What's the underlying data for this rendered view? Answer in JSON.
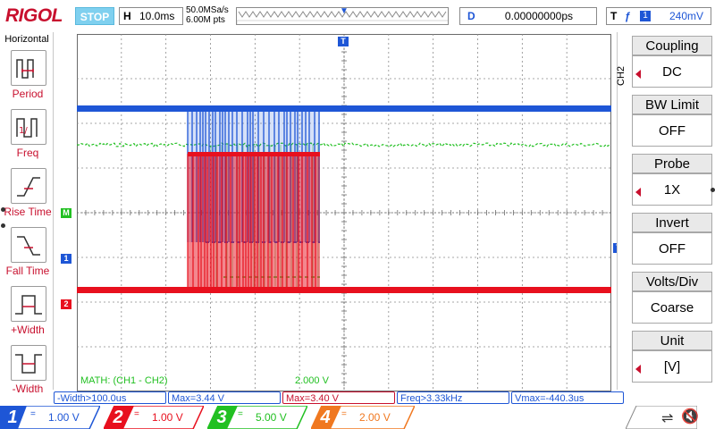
{
  "brand": "RIGOL",
  "run_status": "STOP",
  "timebase": {
    "key": "H",
    "value": "10.0ms"
  },
  "sample": {
    "rate": "50.0MSa/s",
    "points": "6.00M pts"
  },
  "delay": {
    "key": "D",
    "value": "0.00000000ps"
  },
  "trigger": {
    "key": "T",
    "edge": "rising-edge-icon",
    "source": "1",
    "level": "240mV"
  },
  "left_menu": {
    "title": "Horizontal",
    "items": [
      {
        "label": "Period",
        "icon": "period-icon"
      },
      {
        "label": "Freq",
        "icon": "frequency-icon"
      },
      {
        "label": "Rise Time",
        "icon": "rise-time-icon"
      },
      {
        "label": "Fall Time",
        "icon": "fall-time-icon"
      },
      {
        "label": "+Width",
        "icon": "positive-width-icon"
      },
      {
        "label": "-Width",
        "icon": "negative-width-icon"
      }
    ]
  },
  "right_menu": {
    "channel_tag": "CH2",
    "items": [
      {
        "label": "Coupling",
        "value": "DC"
      },
      {
        "label": "BW Limit",
        "value": "OFF"
      },
      {
        "label": "Probe",
        "value": "1X"
      },
      {
        "label": "Invert",
        "value": "OFF"
      },
      {
        "label": "Volts/Div",
        "value": "Coarse"
      },
      {
        "label": "Unit",
        "value": "[V]"
      }
    ]
  },
  "channel_markers": {
    "math": "M",
    "ch1": "1",
    "ch2": "2",
    "trigger_level": "T",
    "trigger_top": "T"
  },
  "math": {
    "label": "MATH: (CH1 - CH2)",
    "scale": "2.000 V"
  },
  "measurements": [
    {
      "text": "-Width>100.0us",
      "color": "#1e56d6"
    },
    {
      "text": "Max=3.44 V",
      "color": "#1e56d6"
    },
    {
      "text": "Max=3.40 V",
      "color": "#c8102e"
    },
    {
      "text": "Freq>3.33kHz",
      "color": "#1e56d6"
    },
    {
      "text": "Vmax=-440.3us",
      "color": "#1e56d6"
    }
  ],
  "channels": [
    {
      "num": "1",
      "coupling": "=",
      "scale": "1.00 V",
      "color": "#1e56d6"
    },
    {
      "num": "2",
      "coupling": "=",
      "scale": "1.00 V",
      "color": "#e8101e"
    },
    {
      "num": "3",
      "coupling": "=",
      "scale": "5.00 V",
      "color": "#22c022"
    },
    {
      "num": "4",
      "coupling": "=",
      "scale": "2.00 V",
      "color": "#f07820"
    }
  ],
  "colors": {
    "ch1": "#1e56d6",
    "ch2": "#e8101e",
    "math": "#22c022",
    "brand": "#c8102e"
  },
  "status_icons": {
    "usb": "usb-icon",
    "sound": "mute-icon"
  }
}
